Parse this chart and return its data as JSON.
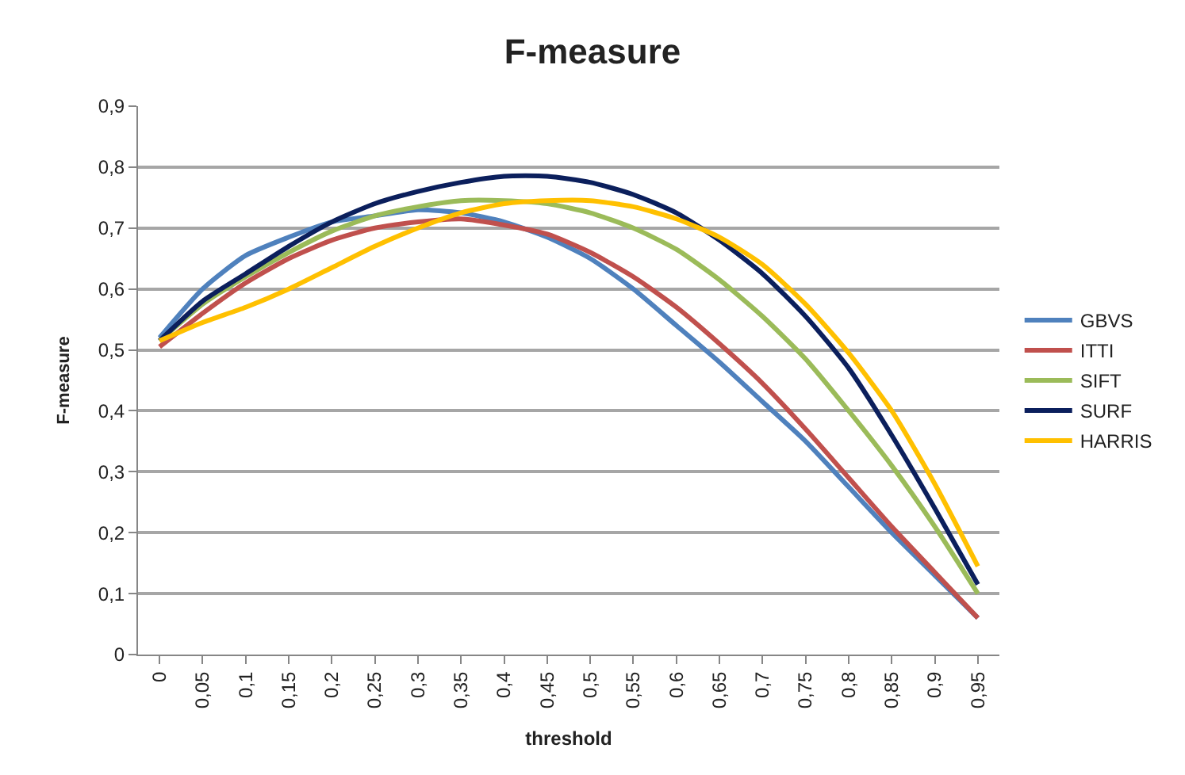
{
  "chart_data": {
    "type": "line",
    "title": "F-measure",
    "xlabel": "threshold",
    "ylabel": "F-measure",
    "categories": [
      "0",
      "0,05",
      "0,1",
      "0,15",
      "0,2",
      "0,25",
      "0,3",
      "0,35",
      "0,4",
      "0,45",
      "0,5",
      "0,55",
      "0,6",
      "0,65",
      "0,7",
      "0,75",
      "0,8",
      "0,85",
      "0,9",
      "0,95"
    ],
    "series": [
      {
        "name": "GBVS",
        "color": "#4f81bd",
        "values": [
          0.52,
          0.6,
          0.655,
          0.685,
          0.71,
          0.72,
          0.73,
          0.725,
          0.71,
          0.685,
          0.65,
          0.6,
          0.54,
          0.48,
          0.415,
          0.35,
          0.275,
          0.2,
          0.13,
          0.06
        ]
      },
      {
        "name": "ITTI",
        "color": "#c0504d",
        "values": [
          0.505,
          0.56,
          0.61,
          0.65,
          0.68,
          0.7,
          0.71,
          0.715,
          0.705,
          0.69,
          0.66,
          0.62,
          0.57,
          0.51,
          0.445,
          0.37,
          0.29,
          0.21,
          0.135,
          0.06
        ]
      },
      {
        "name": "SIFT",
        "color": "#9bbb59",
        "values": [
          0.515,
          0.575,
          0.62,
          0.66,
          0.695,
          0.72,
          0.735,
          0.745,
          0.745,
          0.74,
          0.725,
          0.7,
          0.665,
          0.615,
          0.555,
          0.485,
          0.4,
          0.31,
          0.21,
          0.1
        ]
      },
      {
        "name": "SURF",
        "color": "#0b1f5c",
        "values": [
          0.515,
          0.58,
          0.625,
          0.67,
          0.71,
          0.74,
          0.76,
          0.775,
          0.785,
          0.785,
          0.775,
          0.755,
          0.725,
          0.68,
          0.625,
          0.555,
          0.47,
          0.36,
          0.24,
          0.115
        ]
      },
      {
        "name": "HARRIS",
        "color": "#ffc000",
        "values": [
          0.515,
          0.545,
          0.57,
          0.6,
          0.635,
          0.67,
          0.7,
          0.725,
          0.74,
          0.745,
          0.745,
          0.735,
          0.715,
          0.685,
          0.64,
          0.575,
          0.495,
          0.4,
          0.28,
          0.145
        ]
      }
    ],
    "ylim": [
      0,
      0.9
    ],
    "yticks": [
      0,
      {
        "value": 0.1,
        "label": "0,1"
      },
      {
        "value": 0.2,
        "label": "0,2"
      },
      {
        "value": 0.3,
        "label": "0,3"
      },
      {
        "value": 0.4,
        "label": "0,4"
      },
      {
        "value": 0.5,
        "label": "0,5"
      },
      {
        "value": 0.6,
        "label": "0,6"
      },
      {
        "value": 0.7,
        "label": "0,7"
      },
      {
        "value": 0.8,
        "label": "0,8"
      },
      {
        "value": 0.9,
        "label": "0,9"
      }
    ],
    "grid": "y",
    "legend": "right",
    "marker": "none",
    "line_style": "solid"
  }
}
